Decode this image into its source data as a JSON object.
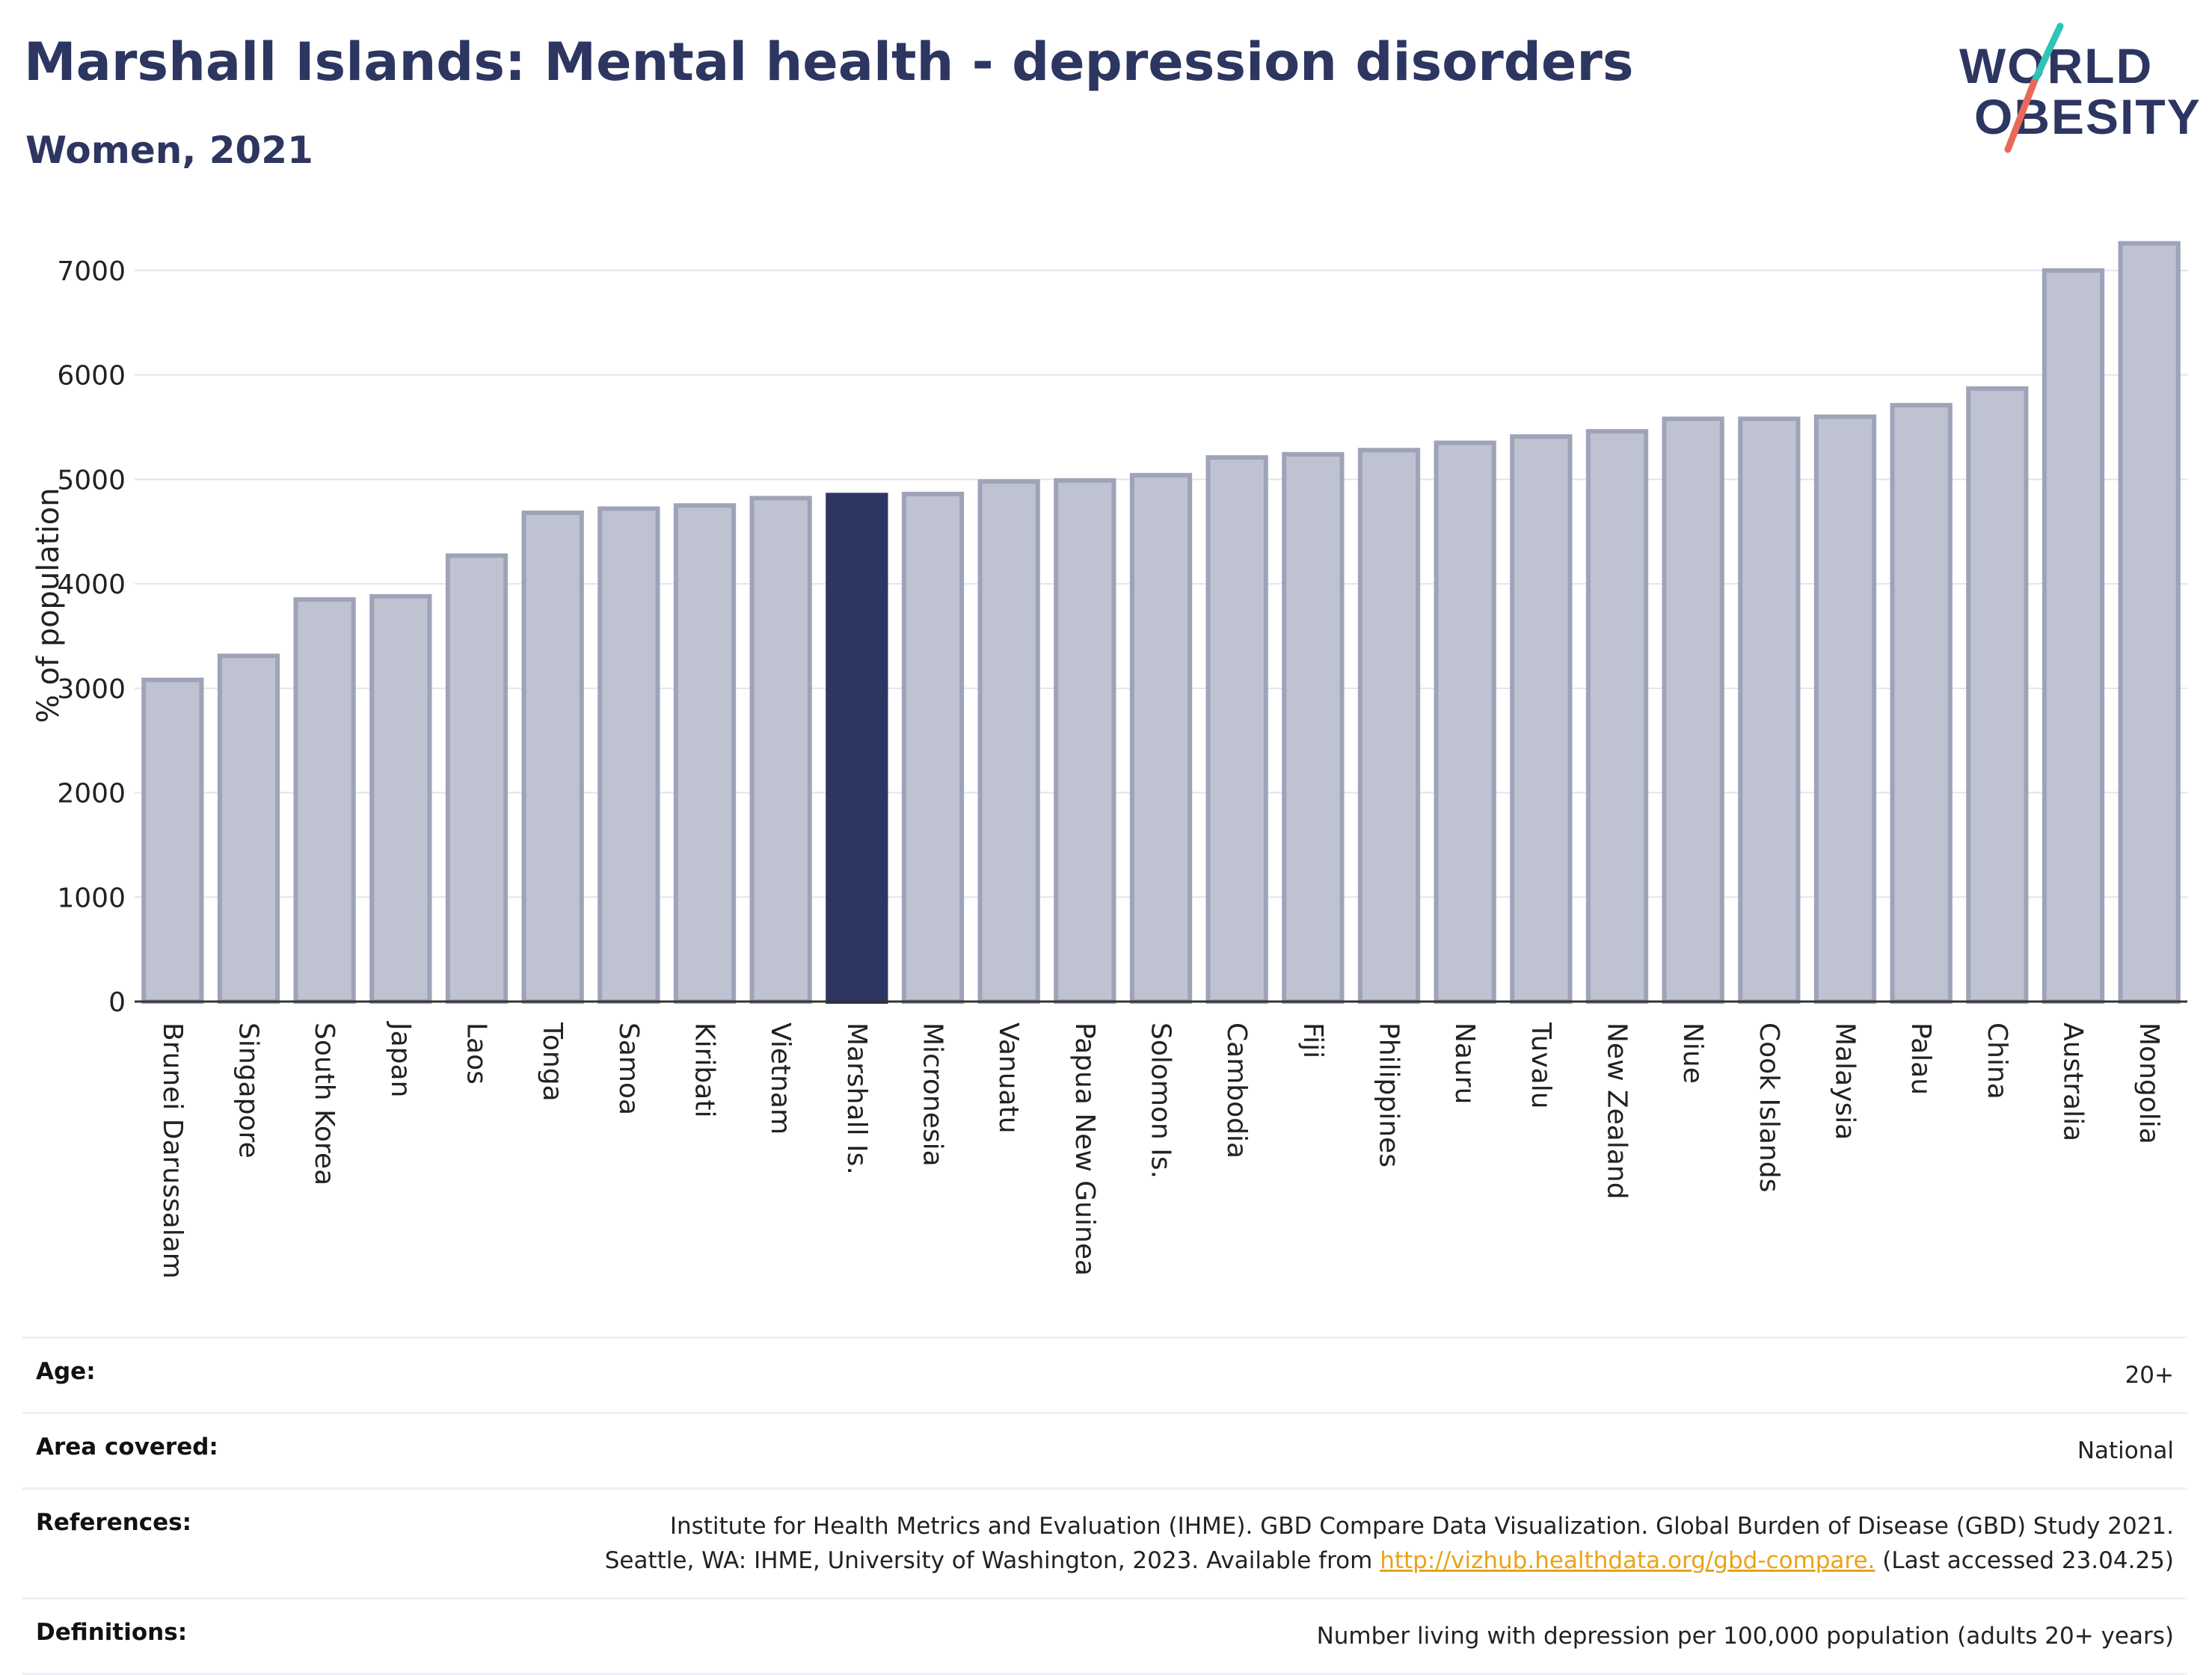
{
  "header": {
    "title": "Marshall Islands: Mental health - depression disorders",
    "subtitle": "Women, 2021"
  },
  "logo": {
    "line1": "WORLD",
    "line2": "OBESITY",
    "icon": "slash-logo-icon"
  },
  "colors": {
    "bar": "#bfc2d0",
    "bar_border": "#9ea3b8",
    "highlight": "#2d3561",
    "title": "#2d3561",
    "link": "#e8a317"
  },
  "chart_data": {
    "type": "bar",
    "ylabel": "% of population",
    "xlabel": "",
    "ylim": [
      0,
      7300
    ],
    "yticks": [
      0,
      1000,
      2000,
      3000,
      4000,
      5000,
      6000,
      7000
    ],
    "grid": true,
    "highlight": "Marshall Is.",
    "categories": [
      "Brunei Darussalam",
      "Singapore",
      "South Korea",
      "Japan",
      "Laos",
      "Tonga",
      "Samoa",
      "Kiribati",
      "Vietnam",
      "Marshall Is.",
      "Micronesia",
      "Vanuatu",
      "Papua New Guinea",
      "Solomon Is.",
      "Cambodia",
      "Fiji",
      "Philippines",
      "Nauru",
      "Tuvalu",
      "New Zealand",
      "Niue",
      "Cook Islands",
      "Malaysia",
      "Palau",
      "China",
      "Australia",
      "Mongolia"
    ],
    "values": [
      3080,
      3310,
      3850,
      3880,
      4270,
      4680,
      4720,
      4750,
      4820,
      4850,
      4860,
      4980,
      4990,
      5040,
      5210,
      5240,
      5280,
      5350,
      5410,
      5460,
      5580,
      5580,
      5600,
      5710,
      5870,
      7000,
      7260
    ]
  },
  "info": {
    "age": {
      "label": "Age:",
      "value": "20+"
    },
    "area": {
      "label": "Area covered:",
      "value": "National"
    },
    "references": {
      "label": "References:",
      "line1": "Institute for Health Metrics and Evaluation (IHME). GBD Compare Data Visualization. Global Burden of Disease (GBD) Study 2021.",
      "line2_pre": "Seattle, WA: IHME, University of Washington, 2023. Available from ",
      "link": "http://vizhub.healthdata.org/gbd-compare.",
      "line2_post": " (Last accessed 23.04.25)"
    },
    "definitions": {
      "label": "Definitions:",
      "value": "Number living with depression per 100,000 population (adults 20+ years)"
    }
  }
}
